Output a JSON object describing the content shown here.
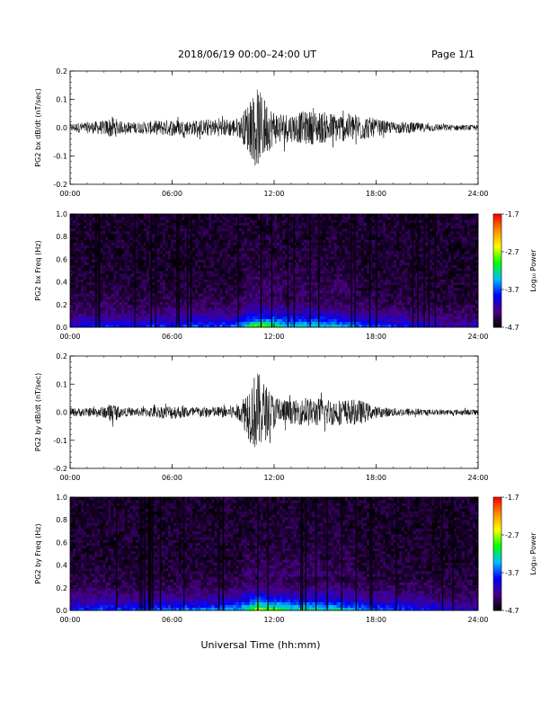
{
  "header": {
    "title": "2018/06/19   00:00–24:00 UT",
    "page": "Page 1/1"
  },
  "xaxis": {
    "label": "Universal Time (hh:mm)",
    "range": [
      0,
      24
    ],
    "ticks": [
      0,
      6,
      12,
      18,
      24
    ],
    "tick_labels": [
      "00:00",
      "06:00",
      "12:00",
      "18:00",
      "24:00"
    ]
  },
  "colorbar": {
    "label": "Log₁₀ Power",
    "ticks": [
      -1.7,
      -2.7,
      -3.7,
      -4.7
    ],
    "tick_labels": [
      "-1.7",
      "-2.7",
      "-3.7",
      "-4.7"
    ],
    "colors": [
      "#000000",
      "#4b0082",
      "#0000ff",
      "#00bfff",
      "#00ff00",
      "#ffff00",
      "#ff8c00",
      "#ff0000"
    ]
  },
  "chart_data": [
    {
      "type": "line",
      "ylabel": "PG2 bx dB/dt (nT/sec)",
      "ylim": [
        -0.2,
        0.2
      ],
      "yticks": [
        -0.2,
        -0.1,
        0.0,
        0.1,
        0.2
      ],
      "ytick_labels": [
        "-0.2",
        "-0.1",
        "0.0",
        "0.1",
        "0.2"
      ],
      "x": [
        0,
        1,
        2,
        2.5,
        3,
        4,
        5,
        6,
        7,
        8,
        9,
        10,
        10.5,
        11,
        11.5,
        12,
        13,
        14,
        15,
        16,
        17,
        18,
        19,
        20,
        21,
        22,
        23,
        24
      ],
      "envelope": [
        0.015,
        0.02,
        0.025,
        0.04,
        0.02,
        0.02,
        0.025,
        0.03,
        0.025,
        0.03,
        0.03,
        0.035,
        0.09,
        0.14,
        0.1,
        0.06,
        0.05,
        0.06,
        0.055,
        0.05,
        0.05,
        0.03,
        0.02,
        0.02,
        0.015,
        0.012,
        0.01,
        0.01
      ]
    },
    {
      "type": "heatmap",
      "ylabel": "PG2 bx Freq (Hz)",
      "ylim": [
        0.0,
        1.0
      ],
      "yticks": [
        0.0,
        0.2,
        0.4,
        0.6,
        0.8,
        1.0
      ],
      "ytick_labels": [
        "0.0",
        "0.2",
        "0.4",
        "0.6",
        "0.8",
        "1.0"
      ],
      "x": [
        0,
        1,
        2,
        3,
        4,
        5,
        6,
        7,
        8,
        9,
        10,
        11,
        12,
        13,
        14,
        15,
        16,
        17,
        18,
        19,
        20,
        21,
        22,
        23,
        24
      ],
      "low_freq_power": [
        -3.9,
        -3.8,
        -3.7,
        -3.8,
        -3.8,
        -3.7,
        -3.7,
        -3.6,
        -3.6,
        -3.6,
        -3.4,
        -2.6,
        -2.9,
        -3.2,
        -3.1,
        -3.2,
        -3.3,
        -3.5,
        -3.6,
        -3.7,
        -3.8,
        -3.9,
        -4.0,
        -4.1,
        -4.1
      ]
    },
    {
      "type": "line",
      "ylabel": "PG2 by dB/dt (nT/sec)",
      "ylim": [
        -0.2,
        0.2
      ],
      "yticks": [
        -0.2,
        -0.1,
        0.0,
        0.1,
        0.2
      ],
      "ytick_labels": [
        "-0.2",
        "-0.1",
        "0.0",
        "0.1",
        "0.2"
      ],
      "x": [
        0,
        1,
        2,
        2.5,
        3,
        4,
        5,
        6,
        7,
        8,
        9,
        10,
        10.5,
        11,
        11.5,
        12,
        13,
        14,
        15,
        16,
        17,
        18,
        19,
        20,
        21,
        22,
        23,
        24
      ],
      "envelope": [
        0.015,
        0.015,
        0.02,
        0.035,
        0.015,
        0.015,
        0.02,
        0.025,
        0.02,
        0.02,
        0.02,
        0.03,
        0.1,
        0.15,
        0.1,
        0.06,
        0.04,
        0.05,
        0.05,
        0.045,
        0.045,
        0.02,
        0.015,
        0.015,
        0.01,
        0.01,
        0.01,
        0.01
      ]
    },
    {
      "type": "heatmap",
      "ylabel": "PG2 by Freq (Hz)",
      "ylim": [
        0.0,
        1.0
      ],
      "yticks": [
        0.0,
        0.2,
        0.4,
        0.6,
        0.8,
        1.0
      ],
      "ytick_labels": [
        "0.0",
        "0.2",
        "0.4",
        "0.6",
        "0.8",
        "1.0"
      ],
      "x": [
        0,
        1,
        2,
        3,
        4,
        5,
        6,
        7,
        8,
        9,
        10,
        11,
        12,
        13,
        14,
        15,
        16,
        17,
        18,
        19,
        20,
        21,
        22,
        23,
        24
      ],
      "low_freq_power": [
        -3.8,
        -3.7,
        -3.6,
        -3.7,
        -3.7,
        -3.6,
        -3.6,
        -3.5,
        -3.5,
        -3.5,
        -3.3,
        -2.5,
        -2.8,
        -3.1,
        -3.0,
        -3.1,
        -3.2,
        -3.4,
        -3.5,
        -3.6,
        -3.7,
        -3.8,
        -3.9,
        -4.0,
        -4.0
      ]
    }
  ]
}
